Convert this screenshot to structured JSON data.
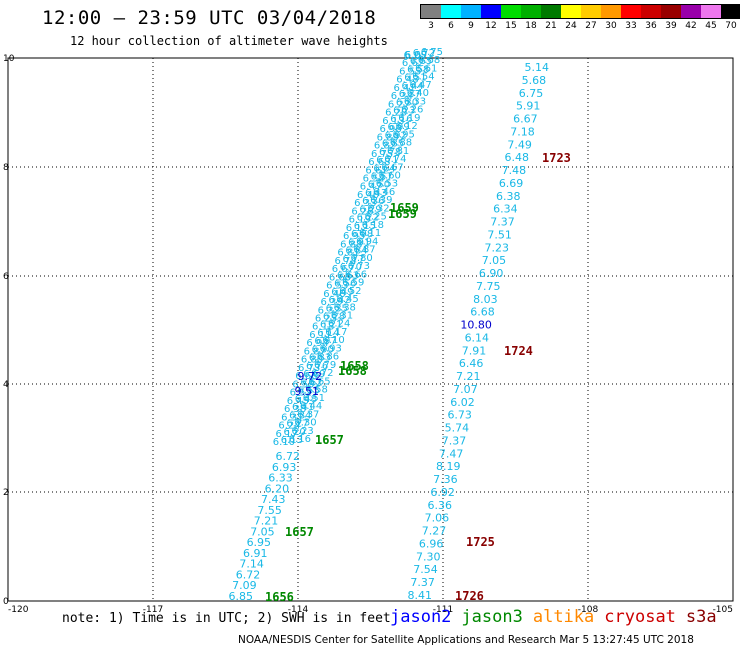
{
  "header": {
    "title": "12:00 – 23:59 UTC 03/04/2018",
    "subtitle": "12 hour collection of altimeter wave heights"
  },
  "legend": {
    "unit": "(ft)",
    "bins": [
      {
        "label": "3",
        "color": "#808080"
      },
      {
        "label": "6",
        "color": "#00ffff"
      },
      {
        "label": "9",
        "color": "#00b2ff"
      },
      {
        "label": "12",
        "color": "#0000ff"
      },
      {
        "label": "15",
        "color": "#00dd00"
      },
      {
        "label": "18",
        "color": "#00b000"
      },
      {
        "label": "21",
        "color": "#007a00"
      },
      {
        "label": "24",
        "color": "#ffff00"
      },
      {
        "label": "27",
        "color": "#ffcc00"
      },
      {
        "label": "30",
        "color": "#ff9900"
      },
      {
        "label": "33",
        "color": "#ff0000"
      },
      {
        "label": "36",
        "color": "#cc0000"
      },
      {
        "label": "39",
        "color": "#990000"
      },
      {
        "label": "42",
        "color": "#9900aa"
      },
      {
        "label": "45",
        "color": "#ee77ee"
      },
      {
        "label": "70",
        "color": "#000000"
      }
    ]
  },
  "axes": {
    "x_ticks": [
      "-120",
      "-117",
      "-114",
      "-111",
      "-108",
      "-105"
    ],
    "y_ticks": [
      "0",
      "2",
      "4",
      "6",
      "8",
      "10"
    ]
  },
  "colors": {
    "swh_low": "#19b8e6",
    "swh_mid": "#0000cc",
    "jason2": "#0000ff",
    "jason3": "#008800",
    "altika": "#ff8800",
    "cryosat": "#cc0000",
    "s3a": "#880000",
    "time_jason3": "#008800",
    "time_s3a": "#880000"
  },
  "tracks": {
    "track_right": {
      "values": [
        "5.14",
        "5.68",
        "6.75",
        "5.91",
        "6.67",
        "7.18",
        "7.49",
        "6.48",
        "7.48",
        "6.69",
        "6.38",
        "6.34",
        "7.37",
        "7.51",
        "7.23",
        "7.05",
        "6.90",
        "7.75",
        "8.03",
        "6.68",
        "10.80",
        "6.14",
        "7.91",
        "6.46",
        "7.21",
        "7.07",
        "6.02",
        "6.73",
        "5.74",
        "7.37",
        "7.47",
        "8.19",
        "7.36",
        "6.92",
        "6.36",
        "7.06",
        "7.27",
        "6.96",
        "7.30",
        "7.54",
        "7.37",
        "8.41"
      ],
      "colors": [
        "c",
        "c",
        "c",
        "c",
        "c",
        "c",
        "c",
        "c",
        "c",
        "c",
        "c",
        "c",
        "c",
        "c",
        "c",
        "c",
        "c",
        "c",
        "c",
        "c",
        "b",
        "c",
        "c",
        "c",
        "c",
        "c",
        "c",
        "c",
        "c",
        "c",
        "c",
        "c",
        "c",
        "c",
        "c",
        "c",
        "c",
        "c",
        "c",
        "c",
        "c",
        "c"
      ]
    },
    "track_left_lower": {
      "values": [
        "6.72",
        "6.93",
        "6.33",
        "6.20",
        "7.43",
        "7.55",
        "7.21",
        "7.05",
        "6.95",
        "6.91",
        "7.14",
        "6.72",
        "7.09",
        "6.85"
      ]
    },
    "track_left_middle": {
      "values": [
        "9.72",
        "9.51"
      ]
    },
    "track_left_top": {
      "values": [
        "6.07"
      ]
    }
  },
  "time_labels": [
    {
      "text": "1723",
      "sat": "s3a"
    },
    {
      "text": "1724",
      "sat": "s3a"
    },
    {
      "text": "1725",
      "sat": "s3a"
    },
    {
      "text": "1726",
      "sat": "s3a"
    },
    {
      "text": "1659",
      "sat": "jason3"
    },
    {
      "text": "1659",
      "sat": "jason3"
    },
    {
      "text": "1658",
      "sat": "jason3"
    },
    {
      "text": "1658",
      "sat": "jason3"
    },
    {
      "text": "1657",
      "sat": "jason3"
    },
    {
      "text": "1657",
      "sat": "jason3"
    },
    {
      "text": "1656",
      "sat": "jason3"
    }
  ],
  "footer": {
    "note": "note: 1) Time is in UTC; 2) SWH is in feet",
    "satellites": [
      {
        "name": "jason2",
        "color": "#0000ff"
      },
      {
        "name": "jason3",
        "color": "#008800"
      },
      {
        "name": "altika",
        "color": "#ff8800"
      },
      {
        "name": "cryosat",
        "color": "#cc0000"
      },
      {
        "name": "s3a",
        "color": "#880000"
      }
    ],
    "credit": "NOAA/NESDIS Center for Satellite Applications and Research    Mar  5 13:27:45 UTC 2018"
  }
}
